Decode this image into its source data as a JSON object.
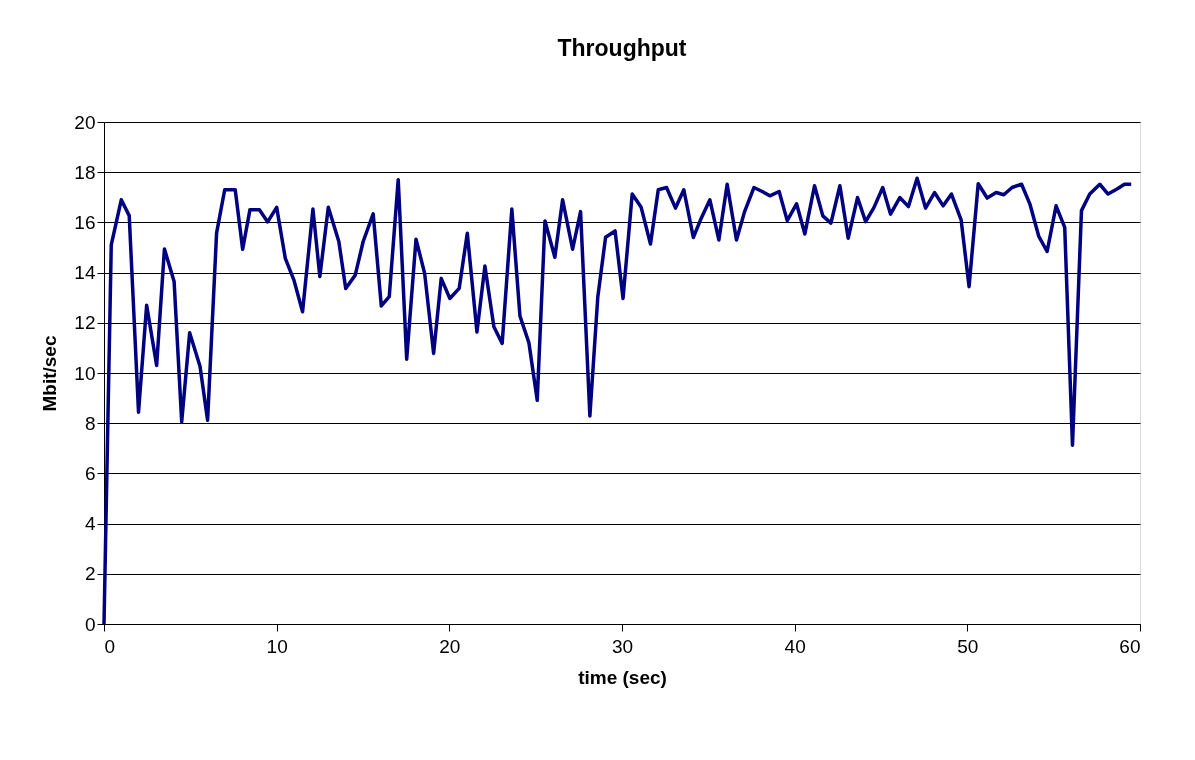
{
  "chart_data": {
    "type": "line",
    "title": "Throughput",
    "xlabel": "time (sec)",
    "ylabel": "Mbit/sec",
    "xlim": [
      0,
      60
    ],
    "xticks": [
      0,
      10,
      20,
      30,
      40,
      50,
      60
    ],
    "ylim": [
      0,
      20
    ],
    "yticks": [
      0,
      2,
      4,
      6,
      8,
      10,
      12,
      14,
      16,
      18,
      20
    ],
    "grid": "y",
    "marker": "none",
    "line_style": "solid",
    "series": [
      {
        "color": "#000080",
        "x": [
          0,
          0.42,
          1.0,
          1.46,
          2.0,
          2.47,
          3.05,
          3.5,
          4.06,
          4.5,
          4.96,
          5.56,
          6.0,
          6.52,
          6.99,
          7.6,
          8.03,
          8.45,
          9.0,
          9.48,
          10.0,
          10.5,
          11.0,
          11.5,
          12.1,
          12.5,
          12.99,
          13.6,
          14.0,
          14.55,
          15.01,
          15.59,
          16.06,
          16.52,
          17.04,
          17.53,
          18.07,
          18.57,
          19.09,
          19.53,
          20.03,
          20.57,
          21.04,
          21.6,
          22.06,
          22.58,
          23.06,
          23.62,
          24.09,
          24.61,
          25.09,
          25.54,
          26.11,
          26.56,
          27.14,
          27.6,
          28.14,
          28.6,
          29.05,
          29.6,
          30.06,
          30.59,
          31.11,
          31.65,
          32.1,
          32.58,
          33.1,
          33.58,
          34.13,
          34.59,
          35.09,
          35.61,
          36.09,
          36.63,
          37.1,
          37.64,
          38.12,
          38.56,
          39.1,
          39.57,
          40.11,
          40.59,
          41.15,
          41.63,
          42.1,
          42.62,
          43.1,
          43.64,
          44.11,
          44.59,
          45.1,
          45.55,
          46.09,
          46.59,
          47.09,
          47.58,
          48.1,
          48.6,
          49.08,
          49.64,
          50.1,
          50.63,
          51.15,
          51.67,
          52.11,
          52.59,
          53.14,
          53.62,
          54.14,
          54.62,
          55.14,
          55.64,
          56.09,
          56.61,
          57.09,
          57.67,
          58.15,
          58.67,
          59.1,
          59.49
        ],
        "values": [
          0,
          15.1,
          16.9,
          16.27,
          8.44,
          12.7,
          10.3,
          14.94,
          13.65,
          8.05,
          11.6,
          10.27,
          8.12,
          15.57,
          17.3,
          17.3,
          14.93,
          16.5,
          16.5,
          16.02,
          16.6,
          14.57,
          13.7,
          12.44,
          16.53,
          13.84,
          16.6,
          15.24,
          13.37,
          13.9,
          15.24,
          16.34,
          12.67,
          13.04,
          17.7,
          10.55,
          15.33,
          13.97,
          10.78,
          13.77,
          12.97,
          13.37,
          15.57,
          11.63,
          14.26,
          11.84,
          11.18,
          16.53,
          12.27,
          11.2,
          8.91,
          16.06,
          14.61,
          16.9,
          14.93,
          16.43,
          8.29,
          13.04,
          15.41,
          15.66,
          12.97,
          17.13,
          16.6,
          15.14,
          17.3,
          17.39,
          16.57,
          17.3,
          15.4,
          16.17,
          16.9,
          15.3,
          17.52,
          15.3,
          16.43,
          17.39,
          17.23,
          17.06,
          17.23,
          16.07,
          16.74,
          15.54,
          17.46,
          16.26,
          15.97,
          17.46,
          15.37,
          16.99,
          16.03,
          16.59,
          17.39,
          16.33,
          16.99,
          16.63,
          17.76,
          16.57,
          17.19,
          16.66,
          17.13,
          16.1,
          13.44,
          17.54,
          16.97,
          17.19,
          17.1,
          17.39,
          17.52,
          16.74,
          15.44,
          14.84,
          16.66,
          15.8,
          7.12,
          16.47,
          17.13,
          17.52,
          17.13,
          17.33,
          17.52,
          17.52
        ]
      }
    ]
  }
}
